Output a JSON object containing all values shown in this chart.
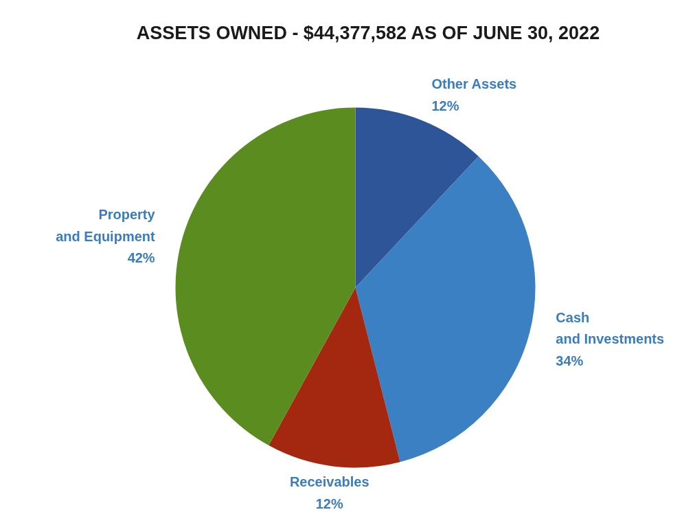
{
  "chart_data": {
    "type": "pie",
    "title": "ASSETS OWNED - $44,377,582 AS OF JUNE 30, 2022",
    "categories": [
      "Other Assets",
      "Cash and Investments",
      "Receivables",
      "Property and Equipment"
    ],
    "values": [
      12,
      34,
      12,
      42
    ],
    "value_labels": [
      "12%",
      "34%",
      "12%",
      "42%"
    ],
    "colors": [
      "#2e5597",
      "#3b80c2",
      "#a3280f",
      "#5b8c1f"
    ],
    "legend": false
  }
}
